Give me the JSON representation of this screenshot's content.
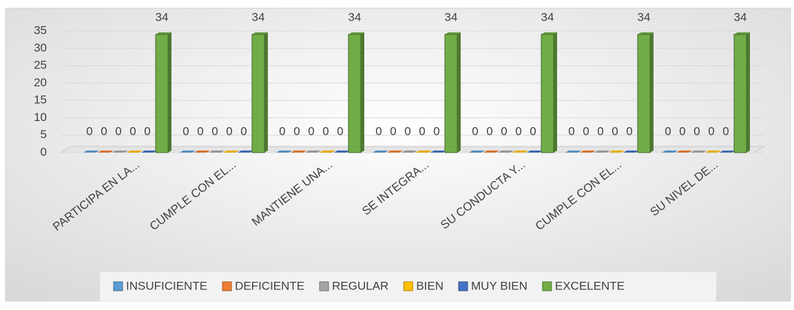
{
  "chart_data": {
    "type": "bar3d",
    "categories": [
      "PARTICIPA EN LA...",
      "CUMPLE CON EL...",
      "MANTIENE UNA...",
      "SE INTEGRA...",
      "SU CONDUCTA Y...",
      "CUMPLE CON EL...",
      "SU NIVEL DE..."
    ],
    "series": [
      {
        "name": "INSUFICIENTE",
        "color": "#5b9bd5",
        "values": [
          0,
          0,
          0,
          0,
          0,
          0,
          0
        ]
      },
      {
        "name": "DEFICIENTE",
        "color": "#ed7d31",
        "values": [
          0,
          0,
          0,
          0,
          0,
          0,
          0
        ]
      },
      {
        "name": "REGULAR",
        "color": "#a5a5a5",
        "values": [
          0,
          0,
          0,
          0,
          0,
          0,
          0
        ]
      },
      {
        "name": "BIEN",
        "color": "#ffc000",
        "values": [
          0,
          0,
          0,
          0,
          0,
          0,
          0
        ]
      },
      {
        "name": "MUY BIEN",
        "color": "#4472c4",
        "values": [
          0,
          0,
          0,
          0,
          0,
          0,
          0
        ]
      },
      {
        "name": "EXCELENTE",
        "color": "#70ad47",
        "values": [
          34,
          34,
          34,
          34,
          34,
          34,
          34
        ]
      }
    ],
    "ylim": [
      0,
      35
    ],
    "yticks": [
      0,
      5,
      10,
      15,
      20,
      25,
      30,
      35
    ],
    "grid": true,
    "legend": "bottom"
  }
}
